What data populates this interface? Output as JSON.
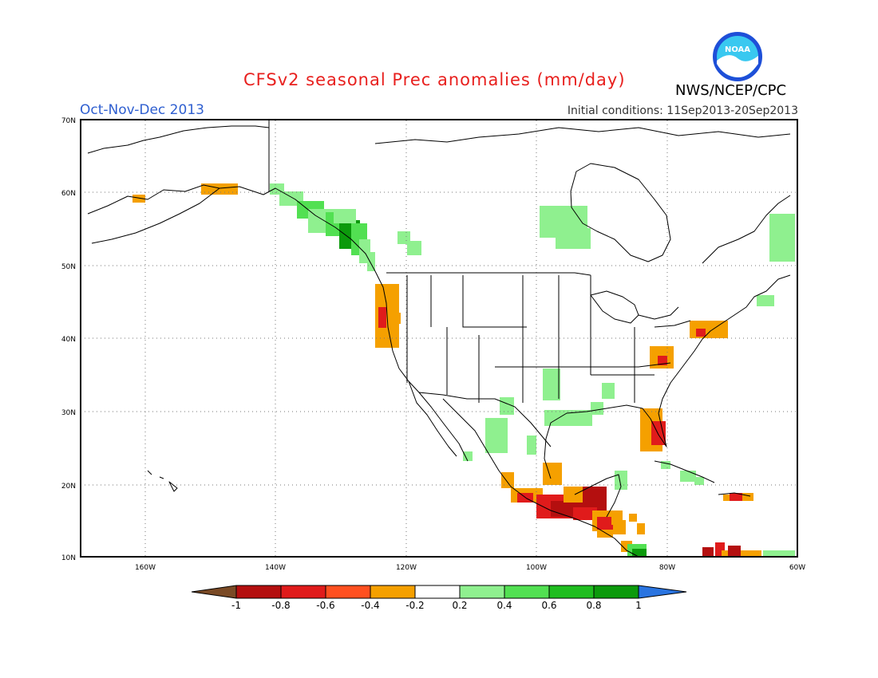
{
  "header": {
    "title": "CFSv2 seasonal Prec anomalies (mm/day)",
    "period": "Oct-Nov-Dec 2013",
    "initial_conditions": "Initial conditions: 11Sep2013-20Sep2013",
    "agency": "NWS/NCEP/CPC",
    "logo_text": "NOAA"
  },
  "axes": {
    "lat_labels": [
      "70N",
      "60N",
      "50N",
      "40N",
      "30N",
      "20N",
      "10N"
    ],
    "lon_labels": [
      "160W",
      "140W",
      "120W",
      "100W",
      "80W",
      "60W"
    ]
  },
  "colorbar": {
    "labels": [
      "-1",
      "-0.8",
      "-0.6",
      "-0.4",
      "-0.2",
      "0.2",
      "0.4",
      "0.6",
      "0.8",
      "1"
    ],
    "colors": [
      "#7a4a25",
      "#b40f0f",
      "#e01b1b",
      "#ff5020",
      "#f5a000",
      "#ffffff",
      "#8ff08f",
      "#52e052",
      "#1fbd1f",
      "#0c9a0c",
      "#2a74e0"
    ]
  },
  "colors": {
    "dry_strong": "#b40f0f",
    "dry_mid": "#e01b1b",
    "dry_weak": "#f5a000",
    "wet_weak": "#8ff08f",
    "wet_mid": "#52e052",
    "wet_strong": "#0c9a0c"
  }
}
